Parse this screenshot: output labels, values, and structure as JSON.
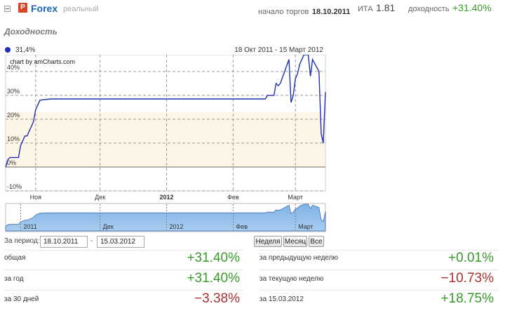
{
  "header": {
    "brand_letter": "P",
    "name": "Forex",
    "type": "реальный",
    "start_label": "начало торгов",
    "start_date": "18.10.2011",
    "ita_label": "ИТА",
    "ita_value": "1.81",
    "yield_label": "доходность",
    "yield_value": "+31.40%"
  },
  "section_title": "Доходность",
  "legend": {
    "label": "31,4%",
    "color": "#1f2fb8"
  },
  "range_label": "18 Окт 2011 - 15 Март 2012",
  "credit": "chart by amCharts.com",
  "chart_data": {
    "type": "line",
    "series": [
      {
        "name": "31,4%",
        "x": [
          "2011-10-18",
          "2011-10-19",
          "2011-10-20",
          "2011-10-21",
          "2011-10-24",
          "2011-10-25",
          "2011-10-27",
          "2011-10-28",
          "2011-10-31",
          "2011-11-01",
          "2011-11-03",
          "2011-11-08",
          "2011-12-15",
          "2012-01-20",
          "2012-02-01",
          "2012-02-10",
          "2012-02-16",
          "2012-02-17",
          "2012-02-20",
          "2012-02-21",
          "2012-02-22",
          "2012-02-23",
          "2012-02-27",
          "2012-02-28",
          "2012-02-29",
          "2012-03-01",
          "2012-03-02",
          "2012-03-03",
          "2012-03-05",
          "2012-03-06",
          "2012-03-07",
          "2012-03-08",
          "2012-03-09",
          "2012-03-12",
          "2012-03-13",
          "2012-03-14",
          "2012-03-15"
        ],
        "y": [
          0,
          3,
          4,
          4,
          4,
          9,
          13,
          13,
          19,
          24,
          28,
          28.5,
          28.5,
          28.5,
          28.5,
          28.5,
          28.5,
          30,
          30,
          35,
          34,
          35,
          45,
          27,
          30,
          37,
          39,
          43,
          47,
          47,
          47,
          38,
          45,
          40,
          14,
          10,
          31.4
        ]
      }
    ],
    "ylim": [
      -10,
      47
    ],
    "y_ticks": [
      "40%",
      "30%",
      "20%",
      "10%",
      "0%",
      "-10%"
    ],
    "y_tick_values": [
      40,
      30,
      20,
      10,
      0,
      -10
    ],
    "x_ticks": [
      "Ноя",
      "Дек",
      "2012",
      "Фев",
      "Март"
    ],
    "x_tick_dates": [
      "2011-11-01",
      "2011-12-01",
      "2012-01-01",
      "2012-02-01",
      "2012-03-01"
    ],
    "x_tick_bold": [
      false,
      false,
      true,
      false,
      false
    ],
    "band": [
      0,
      23
    ],
    "grid": true
  },
  "scroller": {
    "labels": [
      "2011",
      "Дек",
      "2012",
      "Фев",
      "Март"
    ],
    "label_dates": [
      "2011-10-25",
      "2011-12-01",
      "2012-01-01",
      "2012-02-01",
      "2012-03-01"
    ]
  },
  "period": {
    "label": "За период:",
    "from": "18.10.2011",
    "to": "15.03.2012",
    "separator": "-",
    "buttons": [
      "Неделя",
      "Месяц",
      "Все"
    ]
  },
  "stats_left": [
    {
      "label": "общая",
      "value": "+31.40%",
      "sign": "pos"
    },
    {
      "label": "за год",
      "value": "+31.40%",
      "sign": "pos"
    },
    {
      "label": "за 30 дней",
      "value": "−3.38%",
      "sign": "neg"
    }
  ],
  "stats_right": [
    {
      "label": "за предыдущую неделю",
      "value": "+0.01%",
      "sign": "pos"
    },
    {
      "label": "за текущую неделю",
      "value": "−10.73%",
      "sign": "neg"
    },
    {
      "label": "за 15.03.2012",
      "value": "+18.75%",
      "sign": "pos"
    }
  ]
}
